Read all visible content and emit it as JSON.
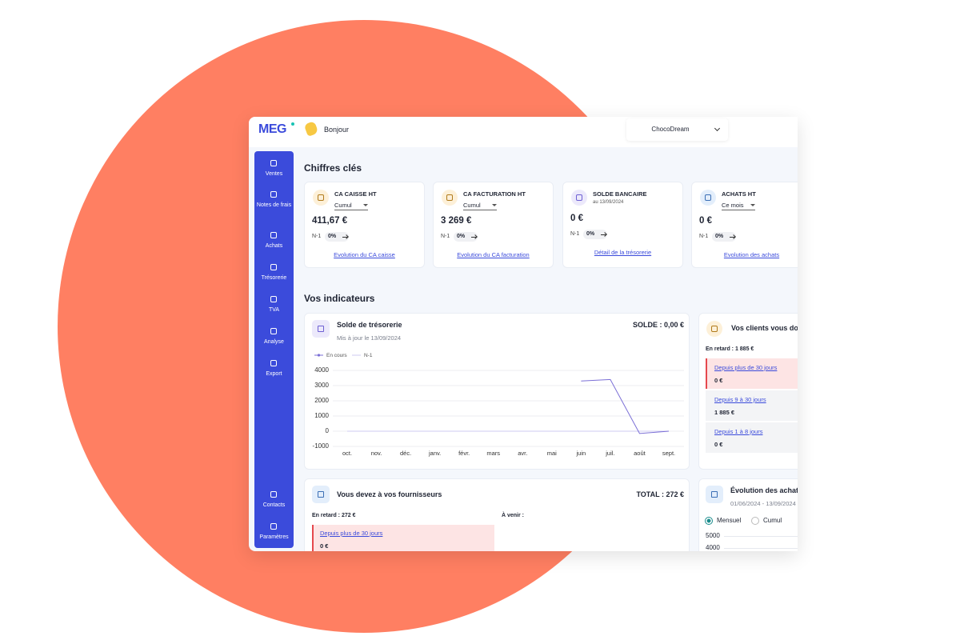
{
  "header": {
    "logo": "MEG",
    "greeting": "Bonjour",
    "company": "ChocoDream"
  },
  "sidebar": {
    "items": [
      "Ventes",
      "Notes de frais",
      "Achats",
      "Trésorerie",
      "TVA",
      "Analyse",
      "Export"
    ],
    "bottom_items": [
      "Contacts",
      "Paramètres"
    ]
  },
  "key_figures": {
    "title": "Chiffres clés",
    "cards": [
      {
        "title": "CA CAISSE HT",
        "selector": "Cumul",
        "amount": "411,67 €",
        "compare_label": "N-1",
        "compare_value": "0%",
        "link": "Evolution du CA caisse"
      },
      {
        "title": "CA FACTURATION HT",
        "selector": "Cumul",
        "amount": "3 269 €",
        "compare_label": "N-1",
        "compare_value": "0%",
        "link": "Evolution du CA facturation"
      },
      {
        "title": "SOLDE BANCAIRE",
        "date": "au 13/09/2024",
        "amount": "0 €",
        "compare_label": "N-1",
        "compare_value": "0%",
        "link": "Détail de la trésorerie"
      },
      {
        "title": "ACHATS HT",
        "selector": "Ce mois",
        "amount": "0 €",
        "compare_label": "N-1",
        "compare_value": "0%",
        "link": "Evolution des achats"
      }
    ]
  },
  "indicators": {
    "title": "Vos indicateurs",
    "treasury": {
      "title": "Solde de trésorerie",
      "subtitle": "Mis à jour le 13/09/2024",
      "balance": "SOLDE : 0,00 €",
      "chart": {
        "type": "line",
        "categories": [
          "oct.",
          "nov.",
          "déc.",
          "janv.",
          "févr.",
          "mars",
          "avr.",
          "mai",
          "juin",
          "juil.",
          "août",
          "sept."
        ],
        "series": [
          {
            "name": "En cours",
            "color": "#7b6fd6",
            "values": [
              null,
              null,
              null,
              null,
              null,
              null,
              null,
              null,
              3300,
              3400,
              -150,
              0
            ]
          },
          {
            "name": "N-1",
            "color": "#cfcbf2",
            "values": [
              0,
              0,
              0,
              0,
              0,
              0,
              0,
              0,
              0,
              0,
              0,
              0
            ]
          }
        ],
        "ylim": [
          -1000,
          4000
        ],
        "yticks": [
          -1000,
          0,
          1000,
          2000,
          3000,
          4000
        ],
        "grid": true
      }
    },
    "clients": {
      "title": "Vos clients vous doivent",
      "late": "En retard : 1 885 €",
      "rows": [
        {
          "label": "Depuis plus de 30 jours",
          "amount": "0 €"
        },
        {
          "label": "Depuis 9 à 30 jours",
          "amount": "1 885 €"
        },
        {
          "label": "Depuis 1 à 8 jours",
          "amount": "0 €"
        }
      ]
    },
    "suppliers": {
      "title": "Vous devez à vos fournisseurs",
      "total": "TOTAL : 272 €",
      "late": "En retard : 272 €",
      "upcoming": "À venir :",
      "rows": [
        {
          "label": "Depuis plus de 30 jours",
          "amount": "0 €"
        }
      ]
    },
    "purchases": {
      "title": "Évolution des achats",
      "period": "01/06/2024 - 13/09/2024",
      "options": [
        "Mensuel",
        "Cumul"
      ],
      "y_labels": [
        "5000",
        "4000"
      ]
    }
  }
}
